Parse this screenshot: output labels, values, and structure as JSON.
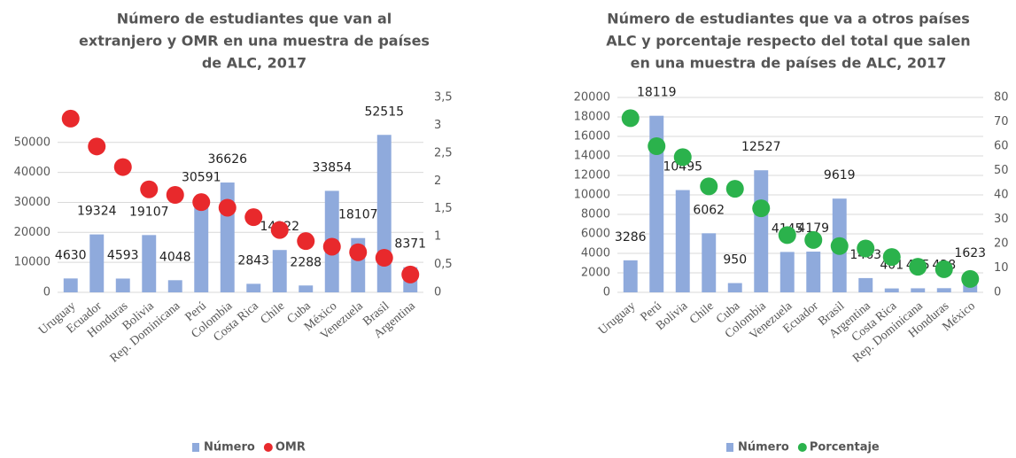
{
  "chart_data": [
    {
      "type": "bar-dot",
      "title": [
        "Número de estudiantes que van al",
        "extranjero  y OMR en una muestra de países",
        "de ALC, 2017"
      ],
      "categories": [
        "Uruguay",
        "Ecuador",
        "Honduras",
        "Bolivia",
        "Rep. Dominicana",
        "Perú",
        "Colombia",
        "Costa Rica",
        "Chile",
        "Cuba",
        "México",
        "Venezuela",
        "Brasil",
        "Argentina"
      ],
      "series": [
        {
          "name": "Número",
          "color": "#8faadc",
          "values": [
            4630,
            19324,
            4593,
            19107,
            4048,
            30591,
            36626,
            2843,
            14122,
            2288,
            33854,
            18107,
            52515,
            8371
          ]
        },
        {
          "name": "OMR",
          "color": "#e8292c",
          "axis": "y2",
          "values": [
            3.12,
            2.62,
            2.25,
            1.85,
            1.75,
            1.62,
            1.52,
            1.35,
            1.12,
            0.92,
            0.82,
            0.72,
            0.62,
            0.32
          ]
        }
      ],
      "ylim": [
        0,
        65000
      ],
      "yticks": [
        0,
        10000,
        20000,
        30000,
        40000,
        50000
      ],
      "y2lim": [
        0,
        3.5
      ],
      "y2ticks": [
        0,
        {
          "value": 0.5,
          "label": "0,5"
        },
        1,
        {
          "value": 1.5,
          "label": "1,5"
        },
        2,
        {
          "value": 2.5,
          "label": "2,5"
        },
        3,
        {
          "value": 3.5,
          "label": "3,5"
        }
      ],
      "legend": "bottom"
    },
    {
      "type": "bar-dot",
      "title": [
        "Número de estudiantes que va a otros países",
        "ALC y porcentaje respecto del total que salen",
        "en una muestra de países de ALC, 2017"
      ],
      "categories": [
        "Uruguay",
        "Perú",
        "Bolivia",
        "Chile",
        "Cuba",
        "Colombia",
        "Venezuela",
        "Ecuador",
        "Brasil",
        "Argentina",
        "Costa Rica",
        "Rep. Dominicana",
        "Honduras",
        "México"
      ],
      "series": [
        {
          "name": "Número",
          "color": "#8faadc",
          "values": [
            3286,
            18119,
            10495,
            6062,
            950,
            12527,
            4145,
            4179,
            9619,
            1463,
            401,
            415,
            428,
            1623
          ]
        },
        {
          "name": "Porcentaje",
          "color": "#2bb24c",
          "axis": "y2",
          "values": [
            71.5,
            60,
            55.5,
            43.5,
            42.5,
            34.5,
            23.5,
            21.5,
            19,
            18,
            14.5,
            10.5,
            9.5,
            5.5
          ]
        }
      ],
      "ylim": [
        0,
        20000
      ],
      "yticks": [
        0,
        2000,
        4000,
        6000,
        8000,
        10000,
        12000,
        14000,
        16000,
        18000,
        20000
      ],
      "y2lim": [
        0,
        80
      ],
      "y2ticks": [
        0,
        10,
        20,
        30,
        40,
        50,
        60,
        70,
        80
      ],
      "legend": "bottom"
    }
  ]
}
